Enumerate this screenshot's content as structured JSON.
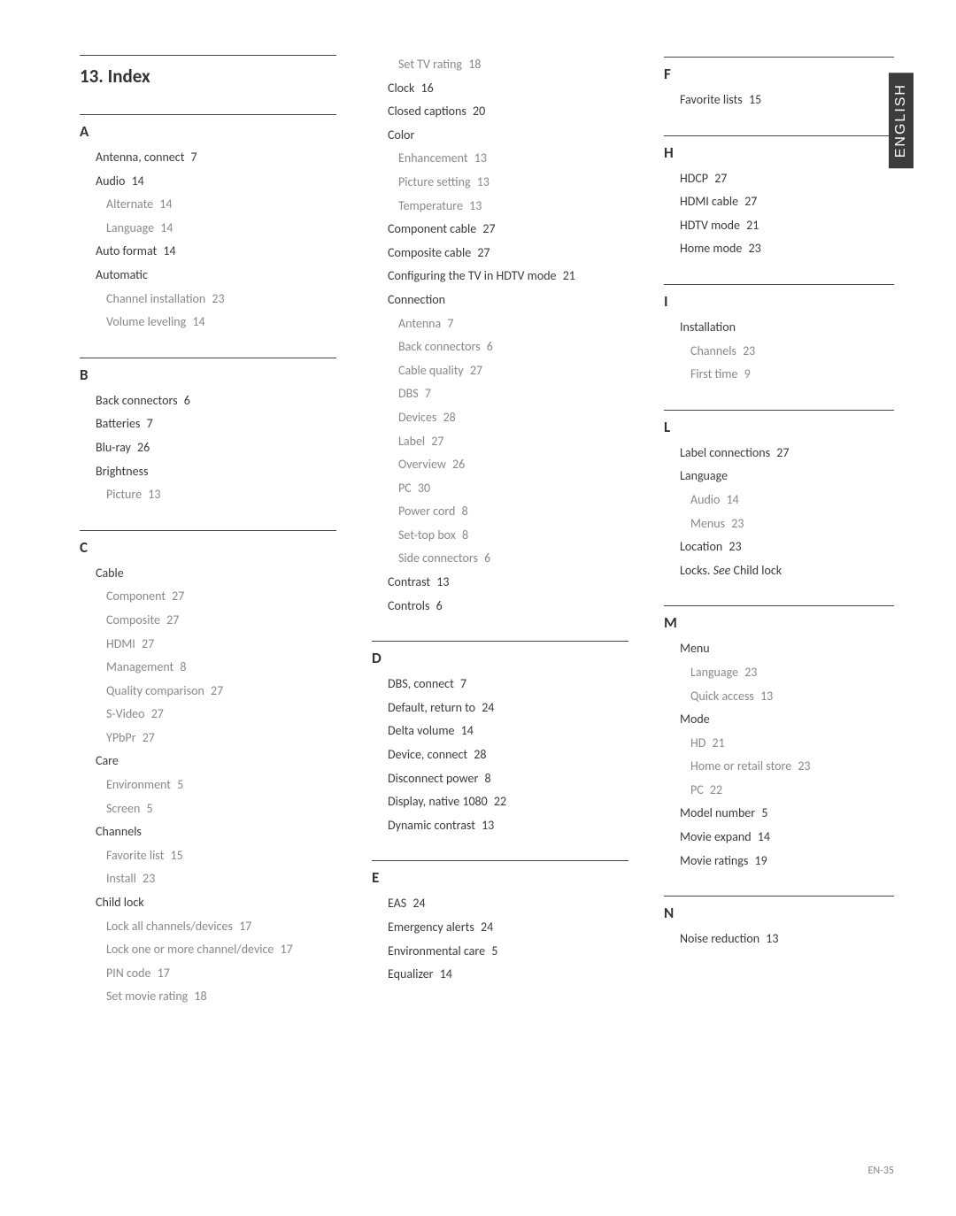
{
  "side_tab": "ENGLISH",
  "footer": "EN-35",
  "title": "13.   Index",
  "col1": {
    "A": {
      "letter": "A",
      "items": [
        {
          "t": "Antenna, connect",
          "pg": "7",
          "lvl": 1
        },
        {
          "t": "Audio",
          "pg": "14",
          "lvl": 1
        },
        {
          "t": "Alternate",
          "pg": "14",
          "lvl": 2
        },
        {
          "t": "Language",
          "pg": "14",
          "lvl": 2
        },
        {
          "t": "Auto format",
          "pg": "14",
          "lvl": 1
        },
        {
          "t": "Automatic",
          "pg": "",
          "lvl": 1
        },
        {
          "t": "Channel installation",
          "pg": "23",
          "lvl": 2
        },
        {
          "t": "Volume leveling",
          "pg": "14",
          "lvl": 2
        }
      ]
    },
    "B": {
      "letter": "B",
      "items": [
        {
          "t": "Back connectors",
          "pg": "6",
          "lvl": 1
        },
        {
          "t": "Batteries",
          "pg": "7",
          "lvl": 1
        },
        {
          "t": "Blu-ray",
          "pg": "26",
          "lvl": 1
        },
        {
          "t": "Brightness",
          "pg": "",
          "lvl": 1
        },
        {
          "t": "Picture",
          "pg": "13",
          "lvl": 2
        }
      ]
    },
    "C": {
      "letter": "C",
      "items": [
        {
          "t": "Cable",
          "pg": "",
          "lvl": 1
        },
        {
          "t": "Component",
          "pg": "27",
          "lvl": 2
        },
        {
          "t": "Composite",
          "pg": "27",
          "lvl": 2
        },
        {
          "t": "HDMI",
          "pg": "27",
          "lvl": 2
        },
        {
          "t": "Management",
          "pg": "8",
          "lvl": 2
        },
        {
          "t": "Quality comparison",
          "pg": "27",
          "lvl": 2
        },
        {
          "t": "S-Video",
          "pg": "27",
          "lvl": 2
        },
        {
          "t": "YPbPr",
          "pg": "27",
          "lvl": 2
        },
        {
          "t": "Care",
          "pg": "",
          "lvl": 1
        },
        {
          "t": "Environment",
          "pg": "5",
          "lvl": 2
        },
        {
          "t": "Screen",
          "pg": "5",
          "lvl": 2
        },
        {
          "t": "Channels",
          "pg": "",
          "lvl": 1
        },
        {
          "t": "Favorite list",
          "pg": "15",
          "lvl": 2
        },
        {
          "t": "Install",
          "pg": "23",
          "lvl": 2
        },
        {
          "t": "Child lock",
          "pg": "",
          "lvl": 1
        },
        {
          "t": "Lock all channels/devices",
          "pg": "17",
          "lvl": 2
        },
        {
          "t": "Lock one or more channel/device",
          "pg": "17",
          "lvl": 2
        },
        {
          "t": "PIN code",
          "pg": "17",
          "lvl": 2
        },
        {
          "t": "Set movie rating",
          "pg": "18",
          "lvl": 2
        }
      ]
    }
  },
  "col2": {
    "Ccont": {
      "items": [
        {
          "t": "Set TV rating",
          "pg": "18",
          "lvl": 2
        },
        {
          "t": "Clock",
          "pg": "16",
          "lvl": 1
        },
        {
          "t": "Closed captions",
          "pg": "20",
          "lvl": 1
        },
        {
          "t": "Color",
          "pg": "",
          "lvl": 1
        },
        {
          "t": "Enhancement",
          "pg": "13",
          "lvl": 2
        },
        {
          "t": "Picture setting",
          "pg": "13",
          "lvl": 2
        },
        {
          "t": "Temperature",
          "pg": "13",
          "lvl": 2
        },
        {
          "t": "Component cable",
          "pg": "27",
          "lvl": 1
        },
        {
          "t": "Composite cable",
          "pg": "27",
          "lvl": 1
        },
        {
          "t": "Configuring the TV in HDTV mode",
          "pg": "21",
          "lvl": 1
        },
        {
          "t": "Connection",
          "pg": "",
          "lvl": 1
        },
        {
          "t": "Antenna",
          "pg": "7",
          "lvl": 2
        },
        {
          "t": "Back connectors",
          "pg": "6",
          "lvl": 2
        },
        {
          "t": "Cable quality",
          "pg": "27",
          "lvl": 2
        },
        {
          "t": "DBS",
          "pg": "7",
          "lvl": 2
        },
        {
          "t": "Devices",
          "pg": "28",
          "lvl": 2
        },
        {
          "t": "Label",
          "pg": "27",
          "lvl": 2
        },
        {
          "t": "Overview",
          "pg": "26",
          "lvl": 2
        },
        {
          "t": "PC",
          "pg": "30",
          "lvl": 2
        },
        {
          "t": "Power cord",
          "pg": "8",
          "lvl": 2
        },
        {
          "t": "Set-top box",
          "pg": "8",
          "lvl": 2
        },
        {
          "t": "Side connectors",
          "pg": "6",
          "lvl": 2
        },
        {
          "t": "Contrast",
          "pg": "13",
          "lvl": 1
        },
        {
          "t": "Controls",
          "pg": "6",
          "lvl": 1
        }
      ]
    },
    "D": {
      "letter": "D",
      "items": [
        {
          "t": "DBS, connect",
          "pg": "7",
          "lvl": 1
        },
        {
          "t": "Default, return to",
          "pg": "24",
          "lvl": 1
        },
        {
          "t": "Delta volume",
          "pg": "14",
          "lvl": 1
        },
        {
          "t": "Device, connect",
          "pg": "28",
          "lvl": 1
        },
        {
          "t": "Disconnect power",
          "pg": "8",
          "lvl": 1
        },
        {
          "t": "Display, native 1080",
          "pg": "22",
          "lvl": 1
        },
        {
          "t": "Dynamic contrast",
          "pg": "13",
          "lvl": 1
        }
      ]
    },
    "E": {
      "letter": "E",
      "items": [
        {
          "t": "EAS",
          "pg": "24",
          "lvl": 1
        },
        {
          "t": "Emergency alerts",
          "pg": "24",
          "lvl": 1
        },
        {
          "t": "Environmental care",
          "pg": "5",
          "lvl": 1
        },
        {
          "t": "Equalizer",
          "pg": "14",
          "lvl": 1
        }
      ]
    }
  },
  "col3": {
    "F": {
      "letter": "F",
      "items": [
        {
          "t": "Favorite lists",
          "pg": "15",
          "lvl": 1
        }
      ]
    },
    "H": {
      "letter": "H",
      "items": [
        {
          "t": "HDCP",
          "pg": "27",
          "lvl": 1
        },
        {
          "t": "HDMI cable",
          "pg": "27",
          "lvl": 1
        },
        {
          "t": "HDTV mode",
          "pg": "21",
          "lvl": 1
        },
        {
          "t": "Home mode",
          "pg": "23",
          "lvl": 1
        }
      ]
    },
    "I": {
      "letter": "I",
      "items": [
        {
          "t": "Installation",
          "pg": "",
          "lvl": 1
        },
        {
          "t": "Channels",
          "pg": "23",
          "lvl": 2
        },
        {
          "t": "First time",
          "pg": "9",
          "lvl": 2
        }
      ]
    },
    "L": {
      "letter": "L",
      "items": [
        {
          "t": "Label connections",
          "pg": "27",
          "lvl": 1
        },
        {
          "t": "Language",
          "pg": "",
          "lvl": 1
        },
        {
          "t": "Audio",
          "pg": "14",
          "lvl": 2
        },
        {
          "t": "Menus",
          "pg": "23",
          "lvl": 2
        },
        {
          "t": "Location",
          "pg": "23",
          "lvl": 1
        }
      ],
      "locks_prefix": "Locks.",
      "locks_see": "See",
      "locks_ref": "Child lock"
    },
    "M": {
      "letter": "M",
      "items": [
        {
          "t": "Menu",
          "pg": "",
          "lvl": 1
        },
        {
          "t": "Language",
          "pg": "23",
          "lvl": 2
        },
        {
          "t": "Quick access",
          "pg": "13",
          "lvl": 2
        },
        {
          "t": "Mode",
          "pg": "",
          "lvl": 1
        },
        {
          "t": "HD",
          "pg": "21",
          "lvl": 2
        },
        {
          "t": "Home or retail store",
          "pg": "23",
          "lvl": 2
        },
        {
          "t": "PC",
          "pg": "22",
          "lvl": 2
        },
        {
          "t": "Model number",
          "pg": "5",
          "lvl": 1
        },
        {
          "t": "Movie expand",
          "pg": "14",
          "lvl": 1
        },
        {
          "t": "Movie ratings",
          "pg": "19",
          "lvl": 1
        }
      ]
    },
    "N": {
      "letter": "N",
      "items": [
        {
          "t": "Noise reduction",
          "pg": "13",
          "lvl": 1
        }
      ]
    }
  }
}
